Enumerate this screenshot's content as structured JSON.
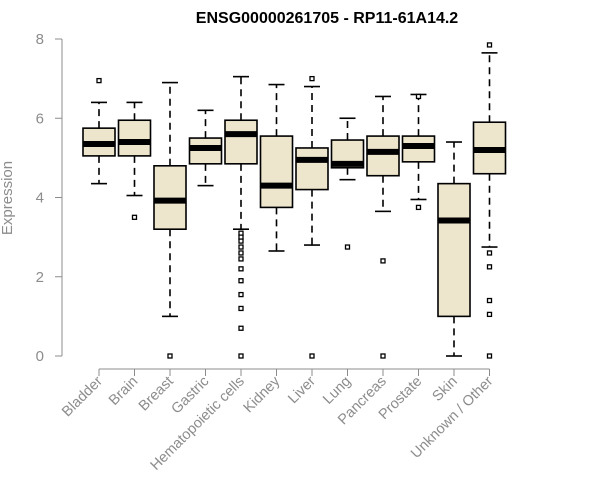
{
  "chart_data": {
    "type": "boxplot",
    "title": "ENSG00000261705 - RP11-61A14.2",
    "xlabel": "",
    "ylabel": "Expression",
    "ylim": [
      0,
      8
    ],
    "yticks": [
      0,
      2,
      4,
      6,
      8
    ],
    "grid": false,
    "colors": {
      "box_fill": "#ede5cc",
      "box_stroke": "#000000",
      "axis": "#8c8c8c"
    },
    "categories": [
      "Bladder",
      "Brain",
      "Breast",
      "Gastric",
      "Hematopoietic cells",
      "Kidney",
      "Liver",
      "Lung",
      "Pancreas",
      "Prostate",
      "Skin",
      "Unknown / Other"
    ],
    "boxes": [
      {
        "name": "Bladder",
        "whisker_low": 4.35,
        "q1": 5.05,
        "median": 5.35,
        "q3": 5.75,
        "whisker_high": 6.4,
        "outliers": [
          6.95
        ]
      },
      {
        "name": "Brain",
        "whisker_low": 4.05,
        "q1": 5.05,
        "median": 5.4,
        "q3": 5.95,
        "whisker_high": 6.4,
        "outliers": [
          3.5
        ]
      },
      {
        "name": "Breast",
        "whisker_low": 1.0,
        "q1": 3.2,
        "median": 3.92,
        "q3": 4.8,
        "whisker_high": 6.9,
        "outliers": [
          0.0
        ]
      },
      {
        "name": "Gastric",
        "whisker_low": 4.3,
        "q1": 4.85,
        "median": 5.25,
        "q3": 5.5,
        "whisker_high": 6.2,
        "outliers": []
      },
      {
        "name": "Hematopoietic cells",
        "whisker_low": 3.2,
        "q1": 4.85,
        "median": 5.6,
        "q3": 5.95,
        "whisker_high": 7.05,
        "outliers": [
          3.1,
          3.0,
          2.9,
          2.75,
          2.6,
          2.45,
          2.2,
          1.9,
          1.55,
          1.2,
          0.7,
          0.0
        ]
      },
      {
        "name": "Kidney",
        "whisker_low": 2.65,
        "q1": 3.75,
        "median": 4.3,
        "q3": 5.55,
        "whisker_high": 6.85,
        "outliers": []
      },
      {
        "name": "Liver",
        "whisker_low": 2.8,
        "q1": 4.2,
        "median": 4.95,
        "q3": 5.25,
        "whisker_high": 6.8,
        "outliers": [
          7.0,
          0.0
        ]
      },
      {
        "name": "Lung",
        "whisker_low": 4.45,
        "q1": 4.75,
        "median": 4.85,
        "q3": 5.45,
        "whisker_high": 6.0,
        "outliers": [
          2.75
        ]
      },
      {
        "name": "Pancreas",
        "whisker_low": 3.65,
        "q1": 4.55,
        "median": 5.15,
        "q3": 5.55,
        "whisker_high": 6.55,
        "outliers": [
          2.4,
          0.0
        ]
      },
      {
        "name": "Prostate",
        "whisker_low": 3.95,
        "q1": 4.9,
        "median": 5.3,
        "q3": 5.55,
        "whisker_high": 6.6,
        "outliers": [
          6.55,
          3.75
        ]
      },
      {
        "name": "Skin",
        "whisker_low": 0.0,
        "q1": 1.0,
        "median": 3.42,
        "q3": 4.35,
        "whisker_high": 5.4,
        "outliers": []
      },
      {
        "name": "Unknown / Other",
        "whisker_low": 2.75,
        "q1": 4.6,
        "median": 5.2,
        "q3": 5.9,
        "whisker_high": 7.65,
        "outliers": [
          7.85,
          2.6,
          2.25,
          1.4,
          1.05,
          0.0
        ]
      }
    ]
  }
}
